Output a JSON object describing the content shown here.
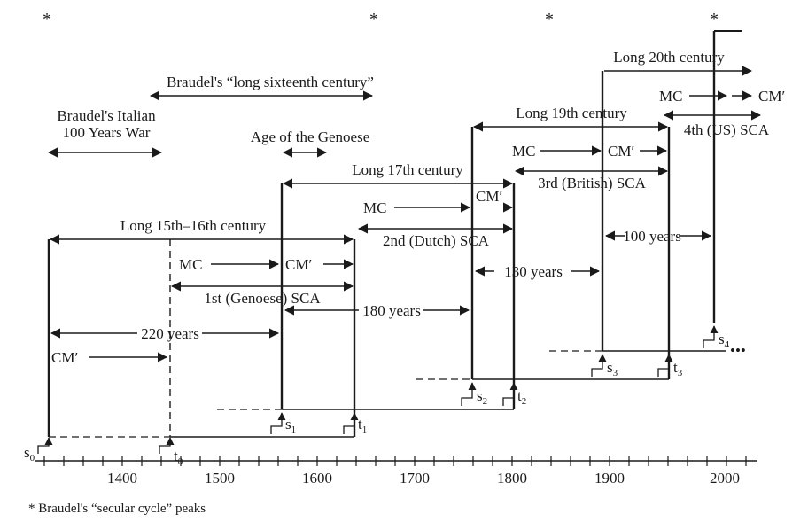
{
  "axis": {
    "ticks": [
      "1400",
      "1500",
      "1600",
      "1700",
      "1800",
      "1900",
      "2000"
    ]
  },
  "stars": [
    "*",
    "*",
    "*",
    "*"
  ],
  "footnote": "* Braudel's “secular cycle” peaks",
  "labels": {
    "braudel_italian_1": "Braudel's Italian",
    "braudel_italian_2": "100 Years War",
    "long_sixteenth": "Braudel's “long sixteenth century”",
    "age_genoese": "Age of the Genoese",
    "long_15_16": "Long 15th–16th century",
    "long_17": "Long 17th century",
    "long_19": "Long 19th century",
    "long_20": "Long 20th century",
    "sca1": "1st (Genoese) SCA",
    "sca2": "2nd (Dutch) SCA",
    "sca3": "3rd (British) SCA",
    "sca4": "4th (US) SCA",
    "mc1": "MC",
    "cm1": "CM′",
    "mc2": "MC",
    "cm2": "CM′",
    "mc3": "MC",
    "cm3": "CM′",
    "mc4": "MC",
    "cm4": "CM′",
    "cm0": "CM′",
    "y220": "220 years",
    "y180": "180 years",
    "y130": "130 years",
    "y100": "100 years",
    "s0": "s",
    "s0_sub": "0",
    "t0": "t",
    "t0_sub": "0",
    "s1": "s",
    "s1_sub": "1",
    "t1": "t",
    "t1_sub": "1",
    "s2": "s",
    "s2_sub": "2",
    "t2": "t",
    "t2_sub": "2",
    "s3": "s",
    "s3_sub": "3",
    "t3": "t",
    "t3_sub": "3",
    "s4": "s",
    "s4_sub": "4",
    "ellipsis": "•••"
  }
}
